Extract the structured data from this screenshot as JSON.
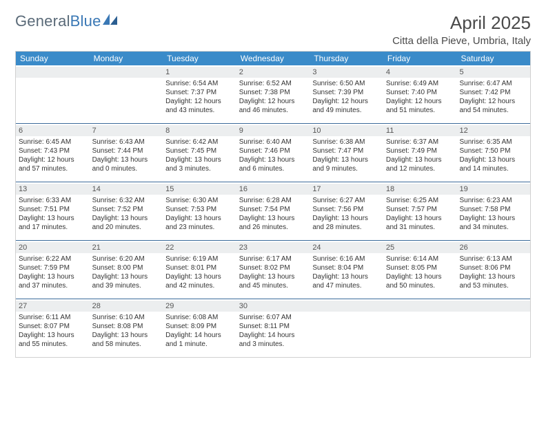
{
  "brand": {
    "part1": "General",
    "part2": "Blue"
  },
  "title": "April 2025",
  "location": "Citta della Pieve, Umbria, Italy",
  "colors": {
    "header_bg": "#3a8bc9",
    "header_fg": "#ffffff",
    "week_divider": "#3a6a9a",
    "daynum_bg": "#eceeef",
    "border": "#d0d0d0",
    "text": "#333333"
  },
  "weekdays": [
    "Sunday",
    "Monday",
    "Tuesday",
    "Wednesday",
    "Thursday",
    "Friday",
    "Saturday"
  ],
  "weeks": [
    [
      null,
      null,
      {
        "n": "1",
        "sunrise": "6:54 AM",
        "sunset": "7:37 PM",
        "daylight": "12 hours and 43 minutes."
      },
      {
        "n": "2",
        "sunrise": "6:52 AM",
        "sunset": "7:38 PM",
        "daylight": "12 hours and 46 minutes."
      },
      {
        "n": "3",
        "sunrise": "6:50 AM",
        "sunset": "7:39 PM",
        "daylight": "12 hours and 49 minutes."
      },
      {
        "n": "4",
        "sunrise": "6:49 AM",
        "sunset": "7:40 PM",
        "daylight": "12 hours and 51 minutes."
      },
      {
        "n": "5",
        "sunrise": "6:47 AM",
        "sunset": "7:42 PM",
        "daylight": "12 hours and 54 minutes."
      }
    ],
    [
      {
        "n": "6",
        "sunrise": "6:45 AM",
        "sunset": "7:43 PM",
        "daylight": "12 hours and 57 minutes."
      },
      {
        "n": "7",
        "sunrise": "6:43 AM",
        "sunset": "7:44 PM",
        "daylight": "13 hours and 0 minutes."
      },
      {
        "n": "8",
        "sunrise": "6:42 AM",
        "sunset": "7:45 PM",
        "daylight": "13 hours and 3 minutes."
      },
      {
        "n": "9",
        "sunrise": "6:40 AM",
        "sunset": "7:46 PM",
        "daylight": "13 hours and 6 minutes."
      },
      {
        "n": "10",
        "sunrise": "6:38 AM",
        "sunset": "7:47 PM",
        "daylight": "13 hours and 9 minutes."
      },
      {
        "n": "11",
        "sunrise": "6:37 AM",
        "sunset": "7:49 PM",
        "daylight": "13 hours and 12 minutes."
      },
      {
        "n": "12",
        "sunrise": "6:35 AM",
        "sunset": "7:50 PM",
        "daylight": "13 hours and 14 minutes."
      }
    ],
    [
      {
        "n": "13",
        "sunrise": "6:33 AM",
        "sunset": "7:51 PM",
        "daylight": "13 hours and 17 minutes."
      },
      {
        "n": "14",
        "sunrise": "6:32 AM",
        "sunset": "7:52 PM",
        "daylight": "13 hours and 20 minutes."
      },
      {
        "n": "15",
        "sunrise": "6:30 AM",
        "sunset": "7:53 PM",
        "daylight": "13 hours and 23 minutes."
      },
      {
        "n": "16",
        "sunrise": "6:28 AM",
        "sunset": "7:54 PM",
        "daylight": "13 hours and 26 minutes."
      },
      {
        "n": "17",
        "sunrise": "6:27 AM",
        "sunset": "7:56 PM",
        "daylight": "13 hours and 28 minutes."
      },
      {
        "n": "18",
        "sunrise": "6:25 AM",
        "sunset": "7:57 PM",
        "daylight": "13 hours and 31 minutes."
      },
      {
        "n": "19",
        "sunrise": "6:23 AM",
        "sunset": "7:58 PM",
        "daylight": "13 hours and 34 minutes."
      }
    ],
    [
      {
        "n": "20",
        "sunrise": "6:22 AM",
        "sunset": "7:59 PM",
        "daylight": "13 hours and 37 minutes."
      },
      {
        "n": "21",
        "sunrise": "6:20 AM",
        "sunset": "8:00 PM",
        "daylight": "13 hours and 39 minutes."
      },
      {
        "n": "22",
        "sunrise": "6:19 AM",
        "sunset": "8:01 PM",
        "daylight": "13 hours and 42 minutes."
      },
      {
        "n": "23",
        "sunrise": "6:17 AM",
        "sunset": "8:02 PM",
        "daylight": "13 hours and 45 minutes."
      },
      {
        "n": "24",
        "sunrise": "6:16 AM",
        "sunset": "8:04 PM",
        "daylight": "13 hours and 47 minutes."
      },
      {
        "n": "25",
        "sunrise": "6:14 AM",
        "sunset": "8:05 PM",
        "daylight": "13 hours and 50 minutes."
      },
      {
        "n": "26",
        "sunrise": "6:13 AM",
        "sunset": "8:06 PM",
        "daylight": "13 hours and 53 minutes."
      }
    ],
    [
      {
        "n": "27",
        "sunrise": "6:11 AM",
        "sunset": "8:07 PM",
        "daylight": "13 hours and 55 minutes."
      },
      {
        "n": "28",
        "sunrise": "6:10 AM",
        "sunset": "8:08 PM",
        "daylight": "13 hours and 58 minutes."
      },
      {
        "n": "29",
        "sunrise": "6:08 AM",
        "sunset": "8:09 PM",
        "daylight": "14 hours and 1 minute."
      },
      {
        "n": "30",
        "sunrise": "6:07 AM",
        "sunset": "8:11 PM",
        "daylight": "14 hours and 3 minutes."
      },
      null,
      null,
      null
    ]
  ],
  "labels": {
    "sunrise": "Sunrise:",
    "sunset": "Sunset:",
    "daylight": "Daylight:"
  }
}
